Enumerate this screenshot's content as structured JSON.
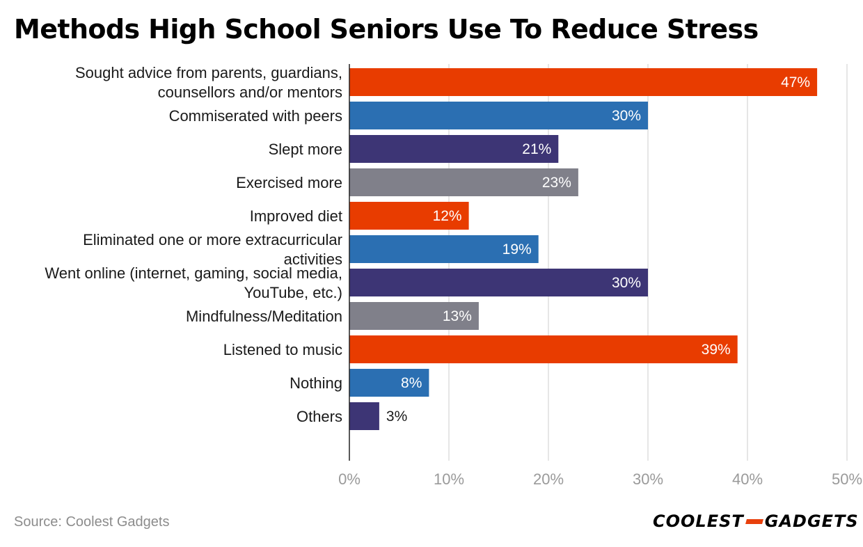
{
  "title": "Methods High School Seniors Use To Reduce Stress",
  "source": "Source: Coolest Gadgets",
  "logo": {
    "left": "COOLEST",
    "right": "GADGETS",
    "accent": "#e8400c"
  },
  "colors": {
    "orange": "#e83c00",
    "blue": "#2b6fb2",
    "purple": "#3d3575",
    "gray": "#80808a",
    "grid": "#dedede",
    "axis": "#222222"
  },
  "chart_data": {
    "type": "bar",
    "orientation": "horizontal",
    "title": "Methods High School Seniors Use To Reduce Stress",
    "xlim": [
      0,
      50
    ],
    "xticks": [
      "0%",
      "10%",
      "20%",
      "30%",
      "40%",
      "50%"
    ],
    "grid": true,
    "categories": [
      [
        "Sought advice from parents, guardians,",
        "counsellors and/or mentors"
      ],
      [
        "Commiserated with peers"
      ],
      [
        "Slept more"
      ],
      [
        "Exercised more"
      ],
      [
        "Improved diet"
      ],
      [
        "Eliminated one or more extracurricular",
        "activities"
      ],
      [
        "Went online (internet, gaming, social media,",
        "YouTube, etc.)"
      ],
      [
        "Mindfulness/Meditation"
      ],
      [
        "Listened to music"
      ],
      [
        "Nothing"
      ],
      [
        "Others"
      ]
    ],
    "values": [
      47,
      30,
      21,
      23,
      12,
      19,
      30,
      13,
      39,
      8,
      3
    ],
    "labels": [
      "47%",
      "30%",
      "21%",
      "23%",
      "12%",
      "19%",
      "30%",
      "13%",
      "39%",
      "8%",
      "3%"
    ],
    "bar_colors": [
      "orange",
      "blue",
      "purple",
      "gray",
      "orange",
      "blue",
      "purple",
      "gray",
      "orange",
      "blue",
      "purple"
    ]
  }
}
